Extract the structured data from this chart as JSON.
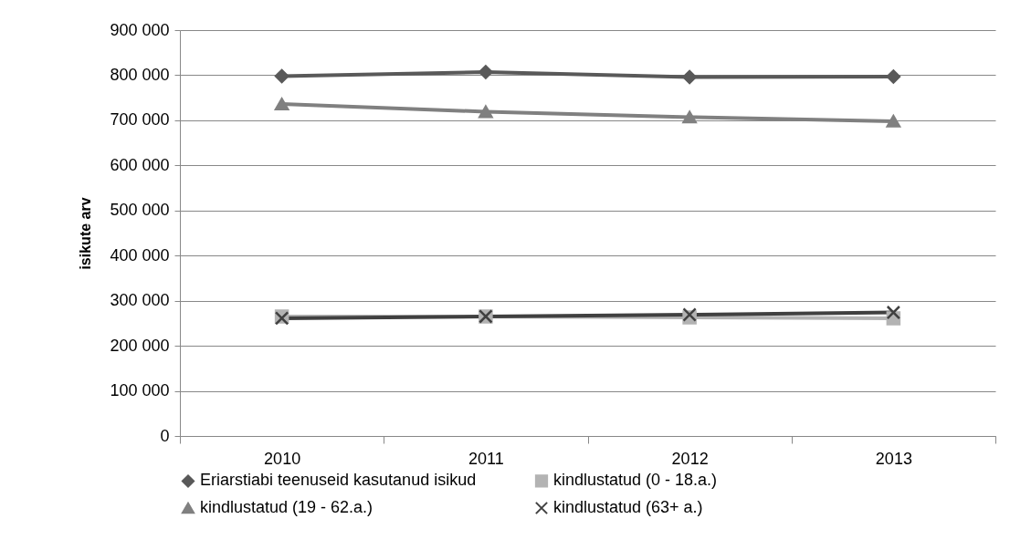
{
  "chart_data": {
    "type": "line",
    "ylabel": "isikute arv",
    "categories": [
      "2010",
      "2011",
      "2012",
      "2013"
    ],
    "series": [
      {
        "name": "Eriarstiabi teenuseid kasutanud isikud",
        "color": "#595959",
        "marker": "diamond",
        "values": [
          798000,
          807000,
          796000,
          797000
        ]
      },
      {
        "name": "kindlustatud (0 - 18.a.)",
        "color": "#b3b3b3",
        "marker": "square",
        "values": [
          265000,
          265000,
          263000,
          261000
        ]
      },
      {
        "name": "kindlustatud (19 - 62.a.)",
        "color": "#808080",
        "marker": "triangle",
        "values": [
          736000,
          719000,
          707000,
          698000
        ]
      },
      {
        "name": "kindlustatud (63+ a.)",
        "color": "#404040",
        "marker": "cross",
        "values": [
          261000,
          265000,
          269000,
          274000
        ]
      }
    ],
    "ylim": [
      0,
      900000
    ],
    "yticks": [
      0,
      {
        "value": 100000,
        "label": "100 000"
      },
      {
        "value": 200000,
        "label": "200 000"
      },
      {
        "value": 300000,
        "label": "300 000"
      },
      {
        "value": 400000,
        "label": "400 000"
      },
      {
        "value": 500000,
        "label": "500 000"
      },
      {
        "value": 600000,
        "label": "600 000"
      },
      {
        "value": 700000,
        "label": "700 000"
      },
      {
        "value": 800000,
        "label": "800 000"
      },
      {
        "value": 900000,
        "label": "900 000"
      }
    ],
    "grid": "y",
    "legend": "bottom"
  }
}
